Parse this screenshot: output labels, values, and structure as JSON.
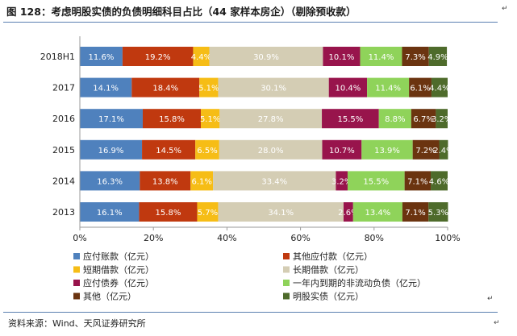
{
  "figure": {
    "title": "图 128：考虑明股实债的负债明细科目占比（44 家样本房企）（剔除预收款）",
    "source": "资料来源：Wind、天风证券研究所"
  },
  "chart_data": {
    "type": "bar",
    "orientation": "horizontal",
    "stacked": "percent",
    "title": "图 128：考虑明股实债的负债明细科目占比（44 家样本房企）（剔除预收款）",
    "categories": [
      "2018H1",
      "2017",
      "2016",
      "2015",
      "2014",
      "2013"
    ],
    "xlim": [
      0,
      100
    ],
    "xticks": [
      "0%",
      "20%",
      "40%",
      "60%",
      "80%",
      "100%"
    ],
    "legend_position": "bottom",
    "grid": false,
    "series": [
      {
        "name": "应付账款（亿元）",
        "color": "#4f81bd",
        "values": [
          11.6,
          14.1,
          17.1,
          16.9,
          16.3,
          16.1
        ]
      },
      {
        "name": "其他应付款（亿元）",
        "color": "#c0390f",
        "values": [
          19.2,
          18.4,
          15.8,
          14.5,
          13.8,
          15.8
        ]
      },
      {
        "name": "短期借款（亿元）",
        "color": "#f6bd16",
        "values": [
          4.4,
          5.1,
          5.1,
          6.5,
          6.1,
          5.7
        ]
      },
      {
        "name": "长期借款（亿元）",
        "color": "#d4cdb4",
        "values": [
          30.9,
          30.1,
          27.8,
          28.0,
          33.4,
          34.1
        ]
      },
      {
        "name": "应付债券（亿元）",
        "color": "#98144c",
        "values": [
          10.1,
          10.4,
          15.5,
          10.7,
          3.2,
          2.6
        ]
      },
      {
        "name": "一年内到期的非流动负债（亿元）",
        "color": "#8fd35a",
        "values": [
          11.4,
          11.4,
          8.8,
          13.9,
          15.5,
          13.4
        ]
      },
      {
        "name": "其他（亿元）",
        "color": "#6b3410",
        "values": [
          7.3,
          6.1,
          6.7,
          7.2,
          7.1,
          7.1
        ]
      },
      {
        "name": "明股实债（亿元）",
        "color": "#4e6b2b",
        "values": [
          4.9,
          4.4,
          3.2,
          2.4,
          4.6,
          5.3
        ]
      }
    ]
  }
}
